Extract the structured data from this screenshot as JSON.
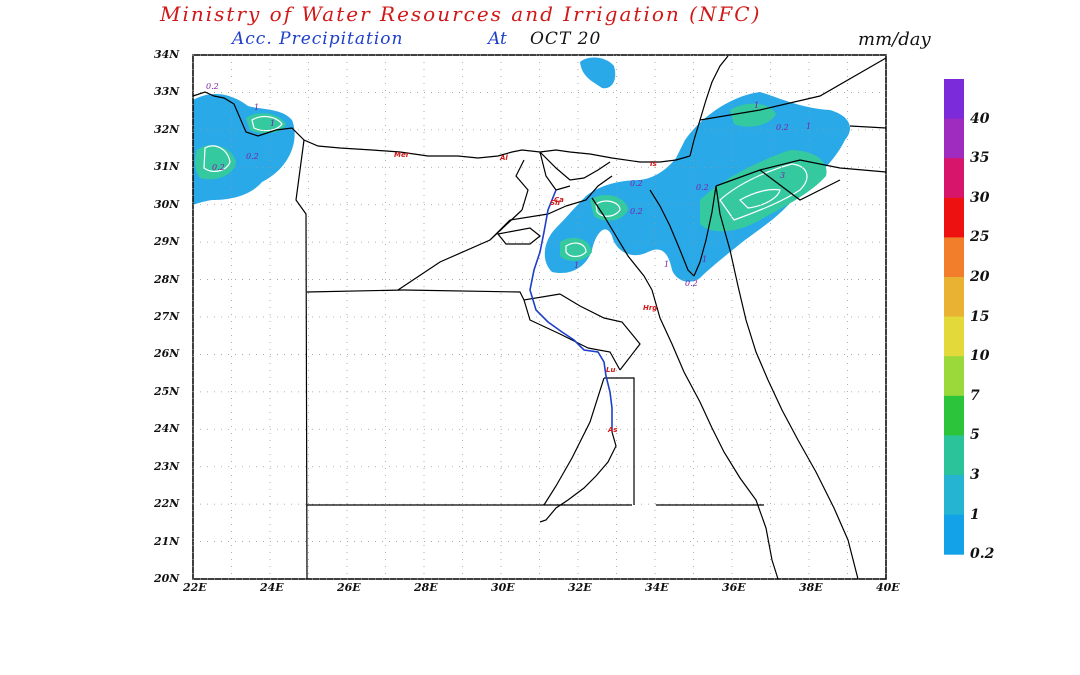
{
  "header": {
    "title": "Ministry of Water Resources and Irrigation (NFC)",
    "subtitle_label": "Acc. Precipitation",
    "subtitle_at": "At",
    "subtitle_date": "OCT 20",
    "units": "mm/day"
  },
  "axes": {
    "lat_labels": [
      "34N",
      "33N",
      "32N",
      "31N",
      "30N",
      "29N",
      "28N",
      "27N",
      "26N",
      "25N",
      "24N",
      "23N",
      "22N",
      "21N",
      "20N"
    ],
    "lon_labels": [
      "22E",
      "24E",
      "26E",
      "28E",
      "30E",
      "32E",
      "34E",
      "36E",
      "38E",
      "40E"
    ],
    "lat_range": [
      20,
      34
    ],
    "lon_range": [
      22,
      40
    ]
  },
  "colorbar": {
    "labels": [
      "40",
      "35",
      "30",
      "25",
      "20",
      "15",
      "10",
      "7",
      "5",
      "3",
      "1",
      "0.2"
    ],
    "colors": [
      "#7b2bd9",
      "#a02bbf",
      "#d7166b",
      "#ee1111",
      "#f27d2b",
      "#eab233",
      "#e3d93a",
      "#9bd83a",
      "#2bc43a",
      "#2bc49a",
      "#25b5d2",
      "#13a2e8"
    ]
  },
  "map": {
    "contour_labels": [
      "0.2",
      "1",
      "0.2",
      "1",
      "0.2",
      "1",
      "0.2",
      "0.2",
      "1",
      "3",
      "0.2",
      "0.2",
      "1",
      "1",
      "1",
      "0.2"
    ],
    "city_labels": [
      "Mer",
      "Al",
      "Sh",
      "Ca",
      "Is",
      "Hrg",
      "Lu",
      "As"
    ],
    "colors": {
      "light_blue": "#2aa9e8",
      "teal": "#35c9a0",
      "contour": "#ffffff",
      "nile": "#1d3fc9",
      "city": "#d01818"
    }
  }
}
